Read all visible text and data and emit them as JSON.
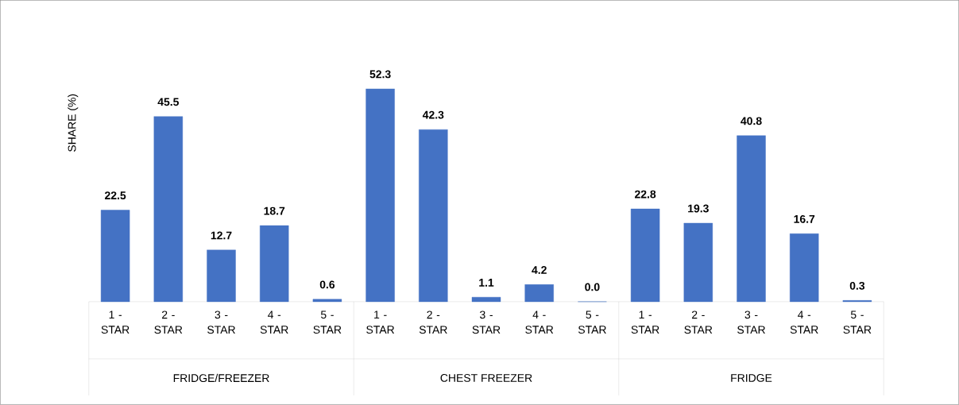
{
  "chart_data": {
    "type": "bar",
    "ylabel": "SHARE (%)",
    "categories": [
      "1 - STAR",
      "2 - STAR",
      "3 - STAR",
      "4 - STAR",
      "5 - STAR",
      "1 - STAR",
      "2 - STAR",
      "3 - STAR",
      "4 - STAR",
      "5 - STAR",
      "1 - STAR",
      "2 - STAR",
      "3 - STAR",
      "4 - STAR",
      "5 - STAR"
    ],
    "values": [
      22.5,
      45.5,
      12.7,
      18.7,
      0.6,
      52.3,
      42.3,
      1.1,
      4.2,
      0.0,
      22.8,
      19.3,
      40.8,
      16.7,
      0.3
    ],
    "color": "#4472c4",
    "value_labels": [
      "22.5",
      "45.5",
      "12.7",
      "18.7",
      "0.6",
      "52.3",
      "42.3",
      "1.1",
      "4.2",
      "0.0",
      "22.8",
      "19.3",
      "40.8",
      "16.7",
      "0.3"
    ],
    "annotations": [
      "FRIDGE/FREEZER",
      "CHEST FREEZER",
      "FRIDGE"
    ]
  }
}
